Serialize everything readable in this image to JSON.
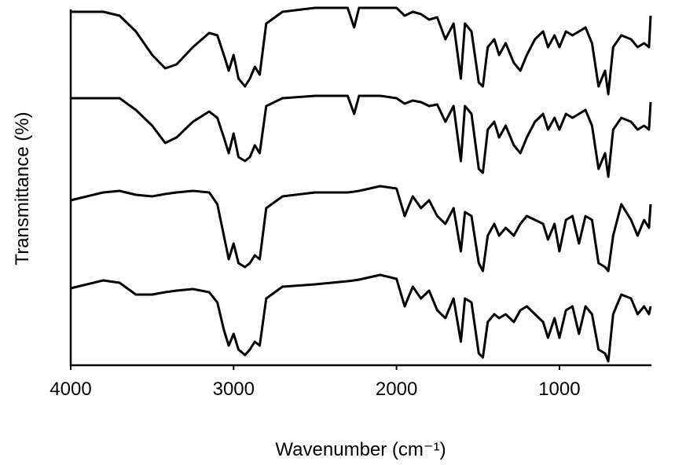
{
  "chart_data": {
    "type": "line",
    "xlabel": "Wavenumber (cm⁻¹)",
    "ylabel": "Transmittance (%)",
    "x": [
      4000,
      3800,
      3700,
      3600,
      3500,
      3420,
      3350,
      3250,
      3150,
      3100,
      3060,
      3030,
      3000,
      2970,
      2930,
      2900,
      2870,
      2840,
      2800,
      2700,
      2500,
      2300,
      2260,
      2230,
      2100,
      2000,
      1950,
      1900,
      1850,
      1800,
      1750,
      1700,
      1650,
      1605,
      1580,
      1540,
      1495,
      1470,
      1440,
      1400,
      1370,
      1330,
      1280,
      1240,
      1200,
      1150,
      1100,
      1070,
      1030,
      1000,
      960,
      920,
      880,
      840,
      800,
      760,
      720,
      700,
      670,
      620,
      560,
      520,
      480,
      450,
      440
    ],
    "series": [
      {
        "color": "#000000",
        "values": [
          90,
          90,
          89,
          85,
          79,
          75.6,
          76.6,
          81,
          84.6,
          84,
          79,
          75,
          79,
          73,
          71,
          73,
          76,
          74,
          87,
          90,
          91,
          91,
          86,
          91,
          91,
          91,
          89,
          90,
          89.4,
          88,
          88.6,
          83,
          87,
          73,
          87,
          85,
          72,
          71,
          81,
          83,
          79,
          82,
          77,
          75,
          79,
          83,
          85,
          81,
          84,
          81,
          85,
          84,
          85,
          86,
          82,
          71,
          75,
          69,
          81,
          84,
          83,
          81,
          82,
          81,
          89
        ]
      },
      {
        "color": "#000000",
        "values": [
          68,
          68,
          68,
          65,
          61,
          56.6,
          58,
          62,
          64.6,
          63,
          58,
          54,
          59,
          53,
          52,
          53,
          56,
          54,
          66,
          68,
          68.6,
          68.6,
          64,
          68.6,
          68.6,
          68,
          66.6,
          67.4,
          67,
          66,
          66.4,
          62,
          66,
          52,
          66,
          64,
          50,
          49,
          60,
          62,
          58,
          61,
          56,
          54,
          58,
          62,
          64,
          60,
          63,
          60,
          64,
          63,
          64,
          65,
          61,
          50,
          54,
          48,
          60,
          63,
          62,
          60,
          61,
          60,
          67
        ]
      },
      {
        "color": "#000000",
        "values": [
          42,
          44,
          44.4,
          43.4,
          43,
          43.6,
          44,
          44.4,
          44,
          41,
          33,
          27,
          31,
          26,
          25,
          26,
          28,
          27,
          40,
          43,
          44,
          44,
          44.2,
          44.4,
          45.6,
          45,
          38,
          43,
          40,
          42,
          38,
          36,
          40,
          29,
          39,
          38,
          26,
          24,
          33,
          36,
          33,
          35,
          33,
          36,
          38,
          37,
          36,
          32,
          36,
          29,
          37,
          38,
          31,
          38,
          37,
          26,
          25,
          24,
          33,
          41,
          37,
          33,
          37,
          35,
          41
        ]
      },
      {
        "color": "#000000",
        "values": [
          19.6,
          21.6,
          21,
          18,
          18,
          18.6,
          19,
          19.4,
          18.6,
          16,
          9,
          5,
          8,
          4,
          2.6,
          4,
          6,
          5,
          17,
          20,
          20.6,
          21.4,
          21.6,
          21.8,
          23,
          22,
          15,
          20,
          17,
          19,
          14,
          12,
          17,
          6,
          17,
          16,
          3,
          2,
          11,
          13,
          12,
          13,
          11,
          14,
          15,
          13,
          11,
          7,
          12,
          7,
          14,
          15,
          8,
          15,
          13,
          4,
          3,
          1,
          13,
          18,
          17,
          13,
          15,
          13,
          15
        ]
      }
    ],
    "xlim": [
      4000,
      440
    ],
    "xticks": [
      4000,
      3000,
      2000,
      1000
    ],
    "ylim": [
      0,
      91
    ]
  }
}
